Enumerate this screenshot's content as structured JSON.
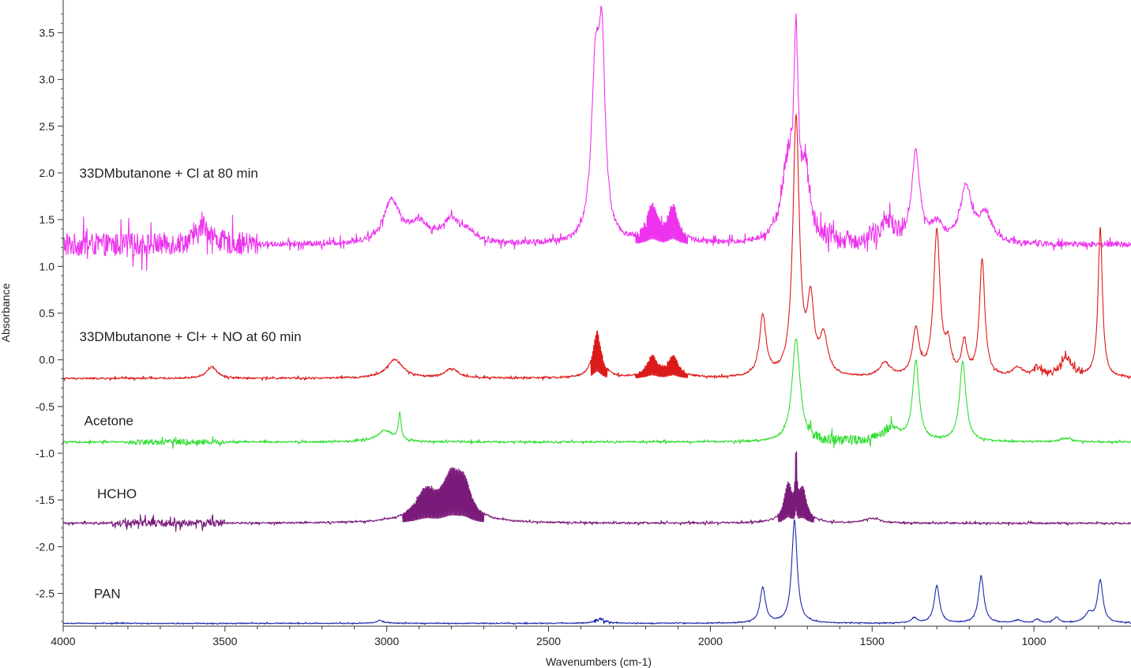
{
  "chart_data": {
    "type": "line",
    "xlabel": "Wavenumbers (cm-1)",
    "ylabel": "Absorbance",
    "xlim": [
      4000,
      700
    ],
    "ylim": [
      -2.85,
      3.85
    ],
    "x_reversed": true,
    "grid": false,
    "legend": "none",
    "x_ticks": [
      "4000",
      "3500",
      "3000",
      "2500",
      "2000",
      "1500",
      "1000"
    ],
    "x_tick_values": [
      4000,
      3500,
      3000,
      2500,
      2000,
      1500,
      1000
    ],
    "y_ticks": [
      "3.5",
      "3.0",
      "2.5",
      "2.0",
      "1.5",
      "1.0",
      "0.5",
      "0.0",
      "-0.5",
      "-1.0",
      "-1.5",
      "-2.0",
      "-2.5"
    ],
    "y_tick_values": [
      3.5,
      3.0,
      2.5,
      2.0,
      1.5,
      1.0,
      0.5,
      0.0,
      -0.5,
      -1.0,
      -1.5,
      -2.0,
      -2.5
    ],
    "series": [
      {
        "label": "33DMbutanone + Cl at 80 min",
        "label_position": [
          3950,
          2.0
        ],
        "color": "#ee33ee",
        "baseline": 1.23,
        "noise": 0.03,
        "noise_regions": [
          [
            4000,
            3400,
            0.12
          ],
          [
            1800,
            1400,
            0.1
          ]
        ],
        "fill_regions": [
          [
            2230,
            2070
          ]
        ],
        "peaks": [
          [
            3565,
            0.2,
            25
          ],
          [
            2985,
            0.45,
            30
          ],
          [
            2900,
            0.2,
            40
          ],
          [
            2800,
            0.25,
            30
          ],
          [
            2745,
            0.1,
            25
          ],
          [
            2355,
            1.75,
            15
          ],
          [
            2335,
            1.85,
            12
          ],
          [
            2180,
            0.38,
            20
          ],
          [
            2115,
            0.38,
            20
          ],
          [
            1760,
            0.8,
            25
          ],
          [
            1735,
            1.85,
            8
          ],
          [
            1705,
            0.7,
            15
          ],
          [
            1450,
            0.2,
            30
          ],
          [
            1365,
            0.95,
            15
          ],
          [
            1300,
            0.2,
            20
          ],
          [
            1210,
            0.6,
            20
          ],
          [
            1150,
            0.3,
            25
          ]
        ]
      },
      {
        "label": "33DMbutanone + Cl+ + NO at 60 min",
        "label_position": [
          3950,
          0.25
        ],
        "color": "#dd1a1a",
        "baseline": -0.2,
        "noise": 0.01,
        "noise_regions": [
          [
            1000,
            850,
            0.04
          ]
        ],
        "fill_regions": [
          [
            2230,
            2070
          ],
          [
            2370,
            2320
          ]
        ],
        "peaks": [
          [
            3540,
            0.12,
            20
          ],
          [
            2975,
            0.2,
            30
          ],
          [
            2800,
            0.1,
            25
          ],
          [
            2350,
            0.5,
            15
          ],
          [
            2180,
            0.22,
            20
          ],
          [
            2115,
            0.22,
            20
          ],
          [
            1838,
            0.65,
            12
          ],
          [
            1735,
            2.75,
            12
          ],
          [
            1690,
            0.75,
            12
          ],
          [
            1650,
            0.4,
            15
          ],
          [
            1460,
            0.15,
            20
          ],
          [
            1365,
            0.5,
            12
          ],
          [
            1300,
            1.55,
            12
          ],
          [
            1265,
            0.3,
            10
          ],
          [
            1215,
            0.35,
            10
          ],
          [
            1160,
            1.25,
            10
          ],
          [
            1050,
            0.1,
            20
          ],
          [
            990,
            0.08,
            15
          ],
          [
            900,
            0.2,
            25
          ],
          [
            795,
            1.6,
            8
          ]
        ]
      },
      {
        "label": "Acetone",
        "label_position": [
          3935,
          -0.65
        ],
        "color": "#33dd33",
        "baseline": -0.88,
        "noise": 0.01,
        "noise_regions": [
          [
            1700,
            1430,
            0.05
          ],
          [
            3800,
            3500,
            0.03
          ]
        ],
        "fill_regions": [],
        "peaks": [
          [
            3005,
            0.12,
            30
          ],
          [
            2960,
            0.28,
            5
          ],
          [
            1735,
            1.1,
            15
          ],
          [
            1440,
            0.15,
            30
          ],
          [
            1365,
            0.85,
            12
          ],
          [
            1220,
            0.85,
            12
          ],
          [
            900,
            0.04,
            20
          ]
        ]
      },
      {
        "label": "HCHO",
        "label_position": [
          3895,
          -1.43
        ],
        "color": "#7a1a7a",
        "baseline": -1.75,
        "noise": 0.01,
        "noise_regions": [
          [
            3850,
            3500,
            0.04
          ]
        ],
        "fill_regions": [
          [
            2950,
            2700
          ],
          [
            1790,
            1680
          ]
        ],
        "peaks": [
          [
            2880,
            0.3,
            40
          ],
          [
            2800,
            0.45,
            35
          ],
          [
            2760,
            0.3,
            25
          ],
          [
            1760,
            0.4,
            15
          ],
          [
            1735,
            0.65,
            3
          ],
          [
            1715,
            0.35,
            15
          ],
          [
            1500,
            0.05,
            30
          ]
        ]
      },
      {
        "label": "PAN",
        "label_position": [
          3905,
          -2.5
        ],
        "color": "#1a2aaa",
        "baseline": -2.82,
        "noise": 0.005,
        "noise_regions": [
          [
            2360,
            2310,
            0.02
          ]
        ],
        "fill_regions": [],
        "peaks": [
          [
            3020,
            0.03,
            15
          ],
          [
            2340,
            0.04,
            20
          ],
          [
            1838,
            0.38,
            10
          ],
          [
            1740,
            1.1,
            10
          ],
          [
            1370,
            0.06,
            10
          ],
          [
            1300,
            0.4,
            10
          ],
          [
            1163,
            0.5,
            10
          ],
          [
            1050,
            0.03,
            15
          ],
          [
            990,
            0.04,
            10
          ],
          [
            930,
            0.06,
            10
          ],
          [
            830,
            0.1,
            15
          ],
          [
            795,
            0.45,
            10
          ]
        ]
      }
    ]
  }
}
